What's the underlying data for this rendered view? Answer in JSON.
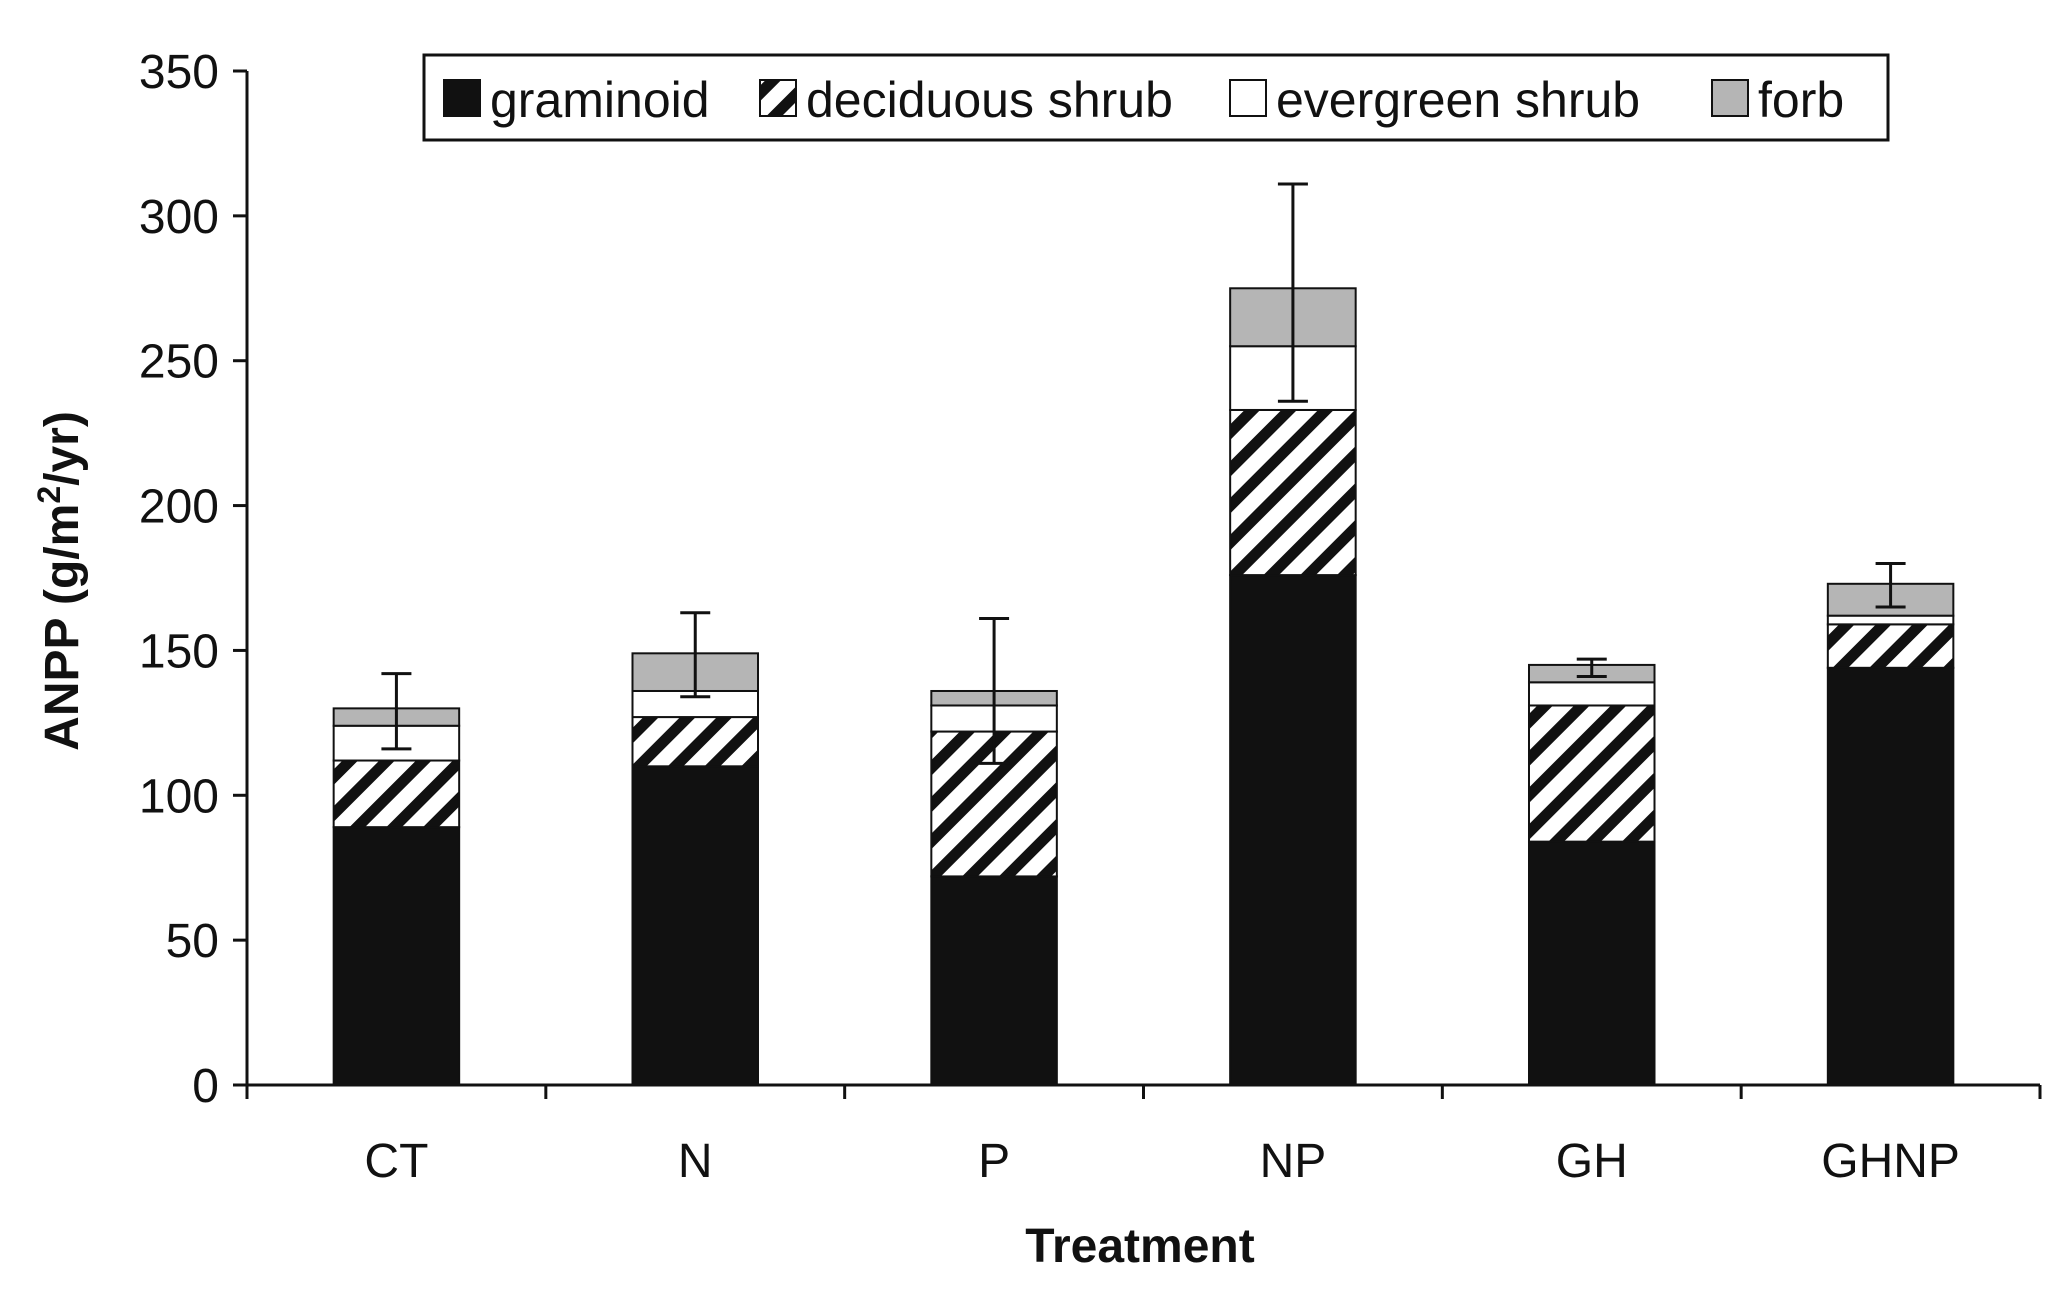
{
  "chart_data": {
    "type": "bar",
    "stacked": true,
    "title": "",
    "xlabel": "Treatment",
    "ylabel": "ANPP (g/m",
    "ylabel_sup": "2",
    "ylabel_tail": "/yr)",
    "ylim": [
      0,
      350
    ],
    "yticks": [
      "0",
      "50",
      "100",
      "150",
      "200",
      "250",
      "300",
      "350"
    ],
    "grid": false,
    "legend_position": "top-center",
    "categories": [
      "CT",
      "N",
      "P",
      "NP",
      "GH",
      "GHNP"
    ],
    "series": [
      {
        "name": "graminoid",
        "values": [
          89,
          110,
          72,
          176,
          84,
          144
        ],
        "color": "#111111",
        "pattern": "solid"
      },
      {
        "name": "deciduous shrub",
        "values": [
          23,
          17,
          50,
          57,
          47,
          15
        ],
        "color": "#ffffff",
        "pattern": "hatch"
      },
      {
        "name": "evergreen shrub",
        "values": [
          12,
          9,
          9,
          22,
          8,
          3
        ],
        "color": "#ffffff",
        "pattern": "white"
      },
      {
        "name": "forb",
        "values": [
          6,
          13,
          5,
          20,
          6,
          11
        ],
        "color": "#b5b5b5",
        "pattern": "gray"
      }
    ],
    "error_bars": [
      {
        "category": "CT",
        "low": 116,
        "high": 142
      },
      {
        "category": "N",
        "low": 134,
        "high": 163
      },
      {
        "category": "P",
        "low": 111,
        "high": 161
      },
      {
        "category": "NP",
        "low": 236,
        "high": 311
      },
      {
        "category": "GH",
        "low": 141,
        "high": 147
      },
      {
        "category": "GHNP",
        "low": 165,
        "high": 180
      }
    ]
  }
}
